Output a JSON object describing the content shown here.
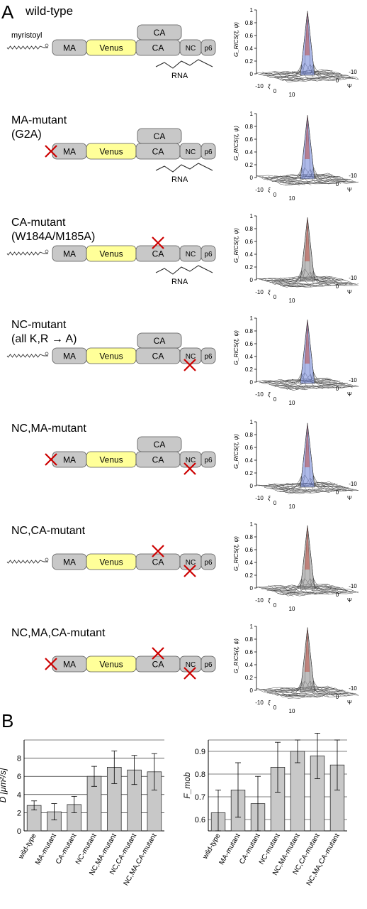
{
  "panel_a": {
    "letter": "A",
    "myristoyl": "myristoyl",
    "rna": "RNA",
    "domains": {
      "ma": "MA",
      "venus": "Venus",
      "ca": "CA",
      "nc": "NC",
      "p6": "p6"
    },
    "surface_axes": {
      "zlabel": "G_RICS(ξ, ψ)",
      "xi": "ξ",
      "psi": "Ψ",
      "ticks_xi": [
        "-10",
        "0",
        "10"
      ],
      "ticks_psi": [
        "0",
        "-10"
      ],
      "zticks": [
        "0",
        "0.2",
        "0.4",
        "0.6",
        "0.8",
        "1"
      ]
    },
    "rows": [
      {
        "title": [
          "wild-type"
        ],
        "myr": true,
        "ma_x": false,
        "ca_dimer": true,
        "ca_x": false,
        "nc_x": false,
        "rna": true
      },
      {
        "title": [
          "MA-mutant",
          "(G2A)"
        ],
        "myr": false,
        "ma_x": true,
        "ca_dimer": true,
        "ca_x": false,
        "nc_x": false,
        "rna": true
      },
      {
        "title": [
          "CA-mutant",
          "(W184A/M185A)"
        ],
        "myr": true,
        "ma_x": false,
        "ca_dimer": false,
        "ca_x": true,
        "nc_x": false,
        "rna": true
      },
      {
        "title": [
          "NC-mutant",
          "(all K,R → A)"
        ],
        "myr": true,
        "ma_x": false,
        "ca_dimer": true,
        "ca_x": false,
        "nc_x": true,
        "rna": false
      },
      {
        "title": [
          "NC,MA-mutant"
        ],
        "myr": false,
        "ma_x": true,
        "ca_dimer": true,
        "ca_x": false,
        "nc_x": true,
        "rna": false
      },
      {
        "title": [
          "NC,CA-mutant"
        ],
        "myr": true,
        "ma_x": false,
        "ca_dimer": false,
        "ca_x": true,
        "nc_x": true,
        "rna": false
      },
      {
        "title": [
          "NC,MA,CA-mutant"
        ],
        "myr": false,
        "ma_x": true,
        "ca_dimer": false,
        "ca_x": true,
        "nc_x": true,
        "rna": false
      }
    ]
  },
  "panel_b": {
    "letter": "B"
  },
  "chart_data": [
    {
      "type": "bar",
      "ylabel": "D [μm²/s]",
      "ylim": [
        0,
        10
      ],
      "yticks": [
        "0",
        "2",
        "4",
        "6",
        "8"
      ],
      "grid": true,
      "categories": [
        "wild-type",
        "MA-mutant",
        "CA-mutant",
        "NC-mutant",
        "NC,MA-mutant",
        "NC,CA-mutant",
        "NC,MA,CA-mutant"
      ],
      "values": [
        2.8,
        2.1,
        2.9,
        6.0,
        7.0,
        6.7,
        6.5
      ],
      "errors": [
        0.5,
        0.9,
        0.9,
        1.1,
        1.8,
        1.6,
        2.0
      ],
      "bar_color": "#c8c8c8"
    },
    {
      "type": "bar",
      "ylabel": "F_mob",
      "ylim": [
        0.55,
        0.95
      ],
      "yticks": [
        "0.6",
        "0.7",
        "0.8",
        "0.9"
      ],
      "grid": true,
      "categories": [
        "wild-type",
        "MA-mutant",
        "CA-mutant",
        "NC-mutant",
        "NC,MA-mutant",
        "NC,CA-mutant",
        "NC,MA,CA-mutant"
      ],
      "values": [
        0.63,
        0.73,
        0.67,
        0.83,
        0.9,
        0.88,
        0.84
      ],
      "errors": [
        0.1,
        0.12,
        0.12,
        0.11,
        0.05,
        0.1,
        0.11
      ],
      "bar_color": "#c8c8c8"
    }
  ]
}
